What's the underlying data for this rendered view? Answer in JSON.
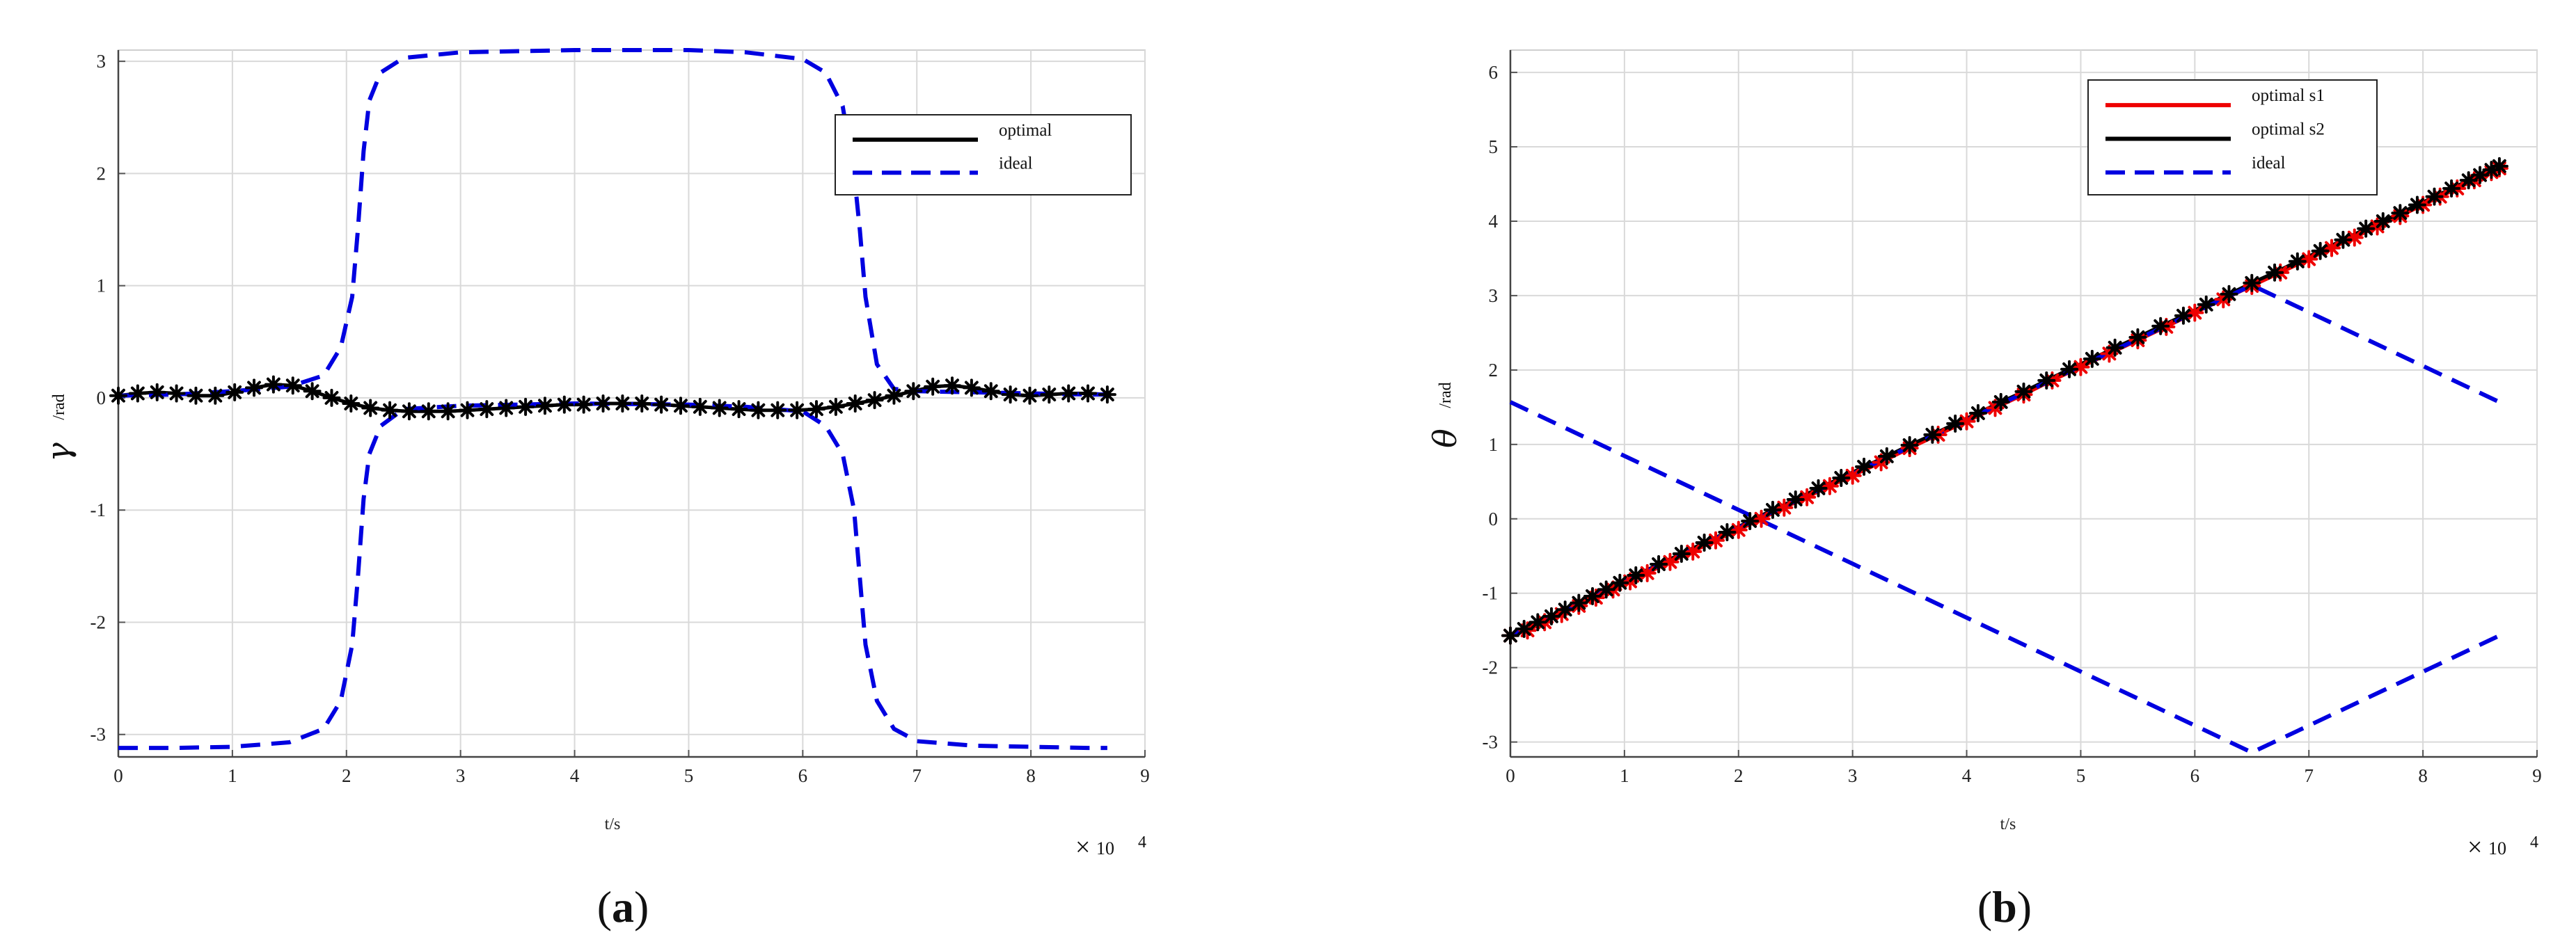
{
  "chart_data": [
    {
      "type": "line",
      "panel_label": "(a)",
      "panel_letter": "a",
      "xlabel": "t/s",
      "ylabel": "γ",
      "ylabel_unit": "/rad",
      "x_multiplier": "10",
      "x_multiplier_exp": "4",
      "xlim": [
        0,
        9
      ],
      "ylim": [
        -3.2,
        3.1
      ],
      "xticks": [
        0,
        1,
        2,
        3,
        4,
        5,
        6,
        7,
        8,
        9
      ],
      "yticks": [
        -3,
        -2,
        -1,
        0,
        1,
        2,
        3
      ],
      "grid": true,
      "legend_position": "top-right",
      "legend": [
        {
          "label": "optimal",
          "color": "#000000",
          "style": "solid"
        },
        {
          "label": "ideal",
          "color": "#0000e0",
          "style": "dashed"
        }
      ],
      "series": [
        {
          "name": "optimal",
          "color": "#000000",
          "style": "solid",
          "marker": "asterisk",
          "x": [
            0,
            0.17,
            0.34,
            0.51,
            0.68,
            0.85,
            1.02,
            1.19,
            1.36,
            1.53,
            1.7,
            1.87,
            2.04,
            2.21,
            2.38,
            2.55,
            2.72,
            2.89,
            3.06,
            3.23,
            3.4,
            3.57,
            3.74,
            3.91,
            4.08,
            4.25,
            4.42,
            4.59,
            4.76,
            4.93,
            5.1,
            5.27,
            5.44,
            5.61,
            5.78,
            5.95,
            6.12,
            6.29,
            6.46,
            6.63,
            6.8,
            6.97,
            7.14,
            7.31,
            7.48,
            7.65,
            7.82,
            7.99,
            8.16,
            8.33,
            8.5,
            8.67
          ],
          "y": [
            0.02,
            0.04,
            0.05,
            0.04,
            0.02,
            0.02,
            0.05,
            0.09,
            0.12,
            0.11,
            0.06,
            0.0,
            -0.05,
            -0.09,
            -0.11,
            -0.12,
            -0.12,
            -0.12,
            -0.11,
            -0.1,
            -0.09,
            -0.08,
            -0.07,
            -0.06,
            -0.06,
            -0.05,
            -0.05,
            -0.05,
            -0.06,
            -0.07,
            -0.08,
            -0.09,
            -0.1,
            -0.11,
            -0.11,
            -0.11,
            -0.1,
            -0.08,
            -0.05,
            -0.02,
            0.02,
            0.06,
            0.1,
            0.11,
            0.09,
            0.06,
            0.03,
            0.02,
            0.03,
            0.04,
            0.04,
            0.03
          ]
        },
        {
          "name": "ideal",
          "color": "#0000e0",
          "style": "dashed",
          "x": [
            0,
            0.5,
            1.0,
            1.5,
            1.8,
            1.95,
            2.05,
            2.1,
            2.15,
            2.2,
            2.3,
            2.5,
            3.0,
            4.0,
            4.5,
            5.0,
            5.5,
            6.0,
            6.2,
            6.35,
            6.45,
            6.5,
            6.55,
            6.65,
            6.8,
            7.0,
            7.5,
            8.0,
            8.5,
            8.67
          ],
          "y": [
            0.02,
            0.03,
            0.06,
            0.1,
            0.2,
            0.45,
            0.9,
            1.5,
            2.2,
            2.65,
            2.9,
            3.03,
            3.08,
            3.1,
            3.1,
            3.1,
            3.08,
            3.02,
            2.9,
            2.6,
            2.0,
            1.5,
            0.9,
            0.3,
            0.08,
            0.06,
            0.05,
            0.04,
            0.03,
            0.03
          ]
        },
        {
          "name": "ideal",
          "color": "#0000e0",
          "style": "dashed",
          "x": [
            0,
            0.5,
            1.0,
            1.5,
            1.8,
            1.95,
            2.05,
            2.1,
            2.15,
            2.2,
            2.3,
            2.5,
            3.0,
            4.0,
            5.0,
            5.5,
            6.0,
            6.2,
            6.35,
            6.45,
            6.5,
            6.55,
            6.65,
            6.8,
            7.0,
            7.5,
            8.0,
            8.5,
            8.67
          ],
          "y": [
            -3.12,
            -3.12,
            -3.11,
            -3.07,
            -2.95,
            -2.7,
            -2.2,
            -1.6,
            -0.9,
            -0.5,
            -0.25,
            -0.1,
            -0.07,
            -0.05,
            -0.06,
            -0.08,
            -0.12,
            -0.25,
            -0.5,
            -1.0,
            -1.6,
            -2.2,
            -2.7,
            -2.95,
            -3.06,
            -3.1,
            -3.11,
            -3.12,
            -3.12
          ]
        }
      ]
    },
    {
      "type": "line",
      "panel_label": "(b)",
      "panel_letter": "b",
      "xlabel": "t/s",
      "ylabel": "θ",
      "ylabel_unit": "/rad",
      "x_multiplier": "10",
      "x_multiplier_exp": "4",
      "xlim": [
        0,
        9
      ],
      "ylim": [
        -3.2,
        6.3
      ],
      "xticks": [
        0,
        1,
        2,
        3,
        4,
        5,
        6,
        7,
        8,
        9
      ],
      "yticks": [
        -3,
        -2,
        -1,
        0,
        1,
        2,
        3,
        4,
        5,
        6
      ],
      "grid": true,
      "legend_position": "top-right",
      "legend": [
        {
          "label": "optimal s1",
          "color": "#ee0000",
          "style": "solid"
        },
        {
          "label": "optimal s2",
          "color": "#000000",
          "style": "solid"
        },
        {
          "label": "ideal",
          "color": "#0000e0",
          "style": "dashed"
        }
      ],
      "series": [
        {
          "name": "optimal s1",
          "color": "#ee0000",
          "style": "solid",
          "marker": "asterisk",
          "x": [
            0,
            0.15,
            0.3,
            0.45,
            0.6,
            0.75,
            0.9,
            1.05,
            1.2,
            1.4,
            1.6,
            1.8,
            2.0,
            2.2,
            2.4,
            2.6,
            2.8,
            3.0,
            3.25,
            3.5,
            3.75,
            4.0,
            4.25,
            4.5,
            4.75,
            5.0,
            5.25,
            5.5,
            5.75,
            6.0,
            6.25,
            6.5,
            6.75,
            7.0,
            7.2,
            7.4,
            7.6,
            7.8,
            8.0,
            8.15,
            8.3,
            8.45,
            8.6,
            8.67
          ],
          "y": [
            -1.57,
            -1.5,
            -1.39,
            -1.28,
            -1.17,
            -1.06,
            -0.95,
            -0.84,
            -0.73,
            -0.58,
            -0.44,
            -0.29,
            -0.15,
            0.0,
            0.15,
            0.29,
            0.44,
            0.58,
            0.76,
            0.95,
            1.13,
            1.31,
            1.49,
            1.67,
            1.86,
            2.04,
            2.22,
            2.4,
            2.58,
            2.77,
            2.95,
            3.13,
            3.31,
            3.49,
            3.64,
            3.78,
            3.93,
            4.07,
            4.22,
            4.33,
            4.44,
            4.55,
            4.66,
            4.71
          ]
        },
        {
          "name": "optimal s2",
          "color": "#000000",
          "style": "solid",
          "marker": "asterisk",
          "x": [
            0,
            0.12,
            0.24,
            0.36,
            0.48,
            0.6,
            0.72,
            0.84,
            0.96,
            1.1,
            1.3,
            1.5,
            1.7,
            1.9,
            2.1,
            2.3,
            2.5,
            2.7,
            2.9,
            3.1,
            3.3,
            3.5,
            3.7,
            3.9,
            4.1,
            4.3,
            4.5,
            4.7,
            4.9,
            5.1,
            5.3,
            5.5,
            5.7,
            5.9,
            6.1,
            6.3,
            6.5,
            6.7,
            6.9,
            7.1,
            7.3,
            7.5,
            7.65,
            7.8,
            7.95,
            8.1,
            8.25,
            8.4,
            8.5,
            8.6,
            8.67
          ],
          "y": [
            -1.57,
            -1.48,
            -1.39,
            -1.31,
            -1.22,
            -1.13,
            -1.04,
            -0.95,
            -0.86,
            -0.76,
            -0.61,
            -0.47,
            -0.32,
            -0.18,
            -0.03,
            0.12,
            0.26,
            0.41,
            0.55,
            0.7,
            0.84,
            0.99,
            1.13,
            1.28,
            1.42,
            1.57,
            1.71,
            1.86,
            2.01,
            2.15,
            2.3,
            2.44,
            2.59,
            2.73,
            2.88,
            3.02,
            3.17,
            3.31,
            3.46,
            3.6,
            3.75,
            3.9,
            4.0,
            4.11,
            4.22,
            4.33,
            4.44,
            4.55,
            4.62,
            4.69,
            4.74
          ]
        },
        {
          "name": "ideal",
          "color": "#0000e0",
          "style": "dashed",
          "x": [
            0,
            6.5,
            8.67
          ],
          "y": [
            -1.57,
            3.14,
            1.57
          ]
        },
        {
          "name": "ideal",
          "color": "#0000e0",
          "style": "dashed",
          "x": [
            0,
            6.5,
            8.67
          ],
          "y": [
            1.57,
            -3.14,
            -1.57
          ]
        }
      ]
    }
  ]
}
